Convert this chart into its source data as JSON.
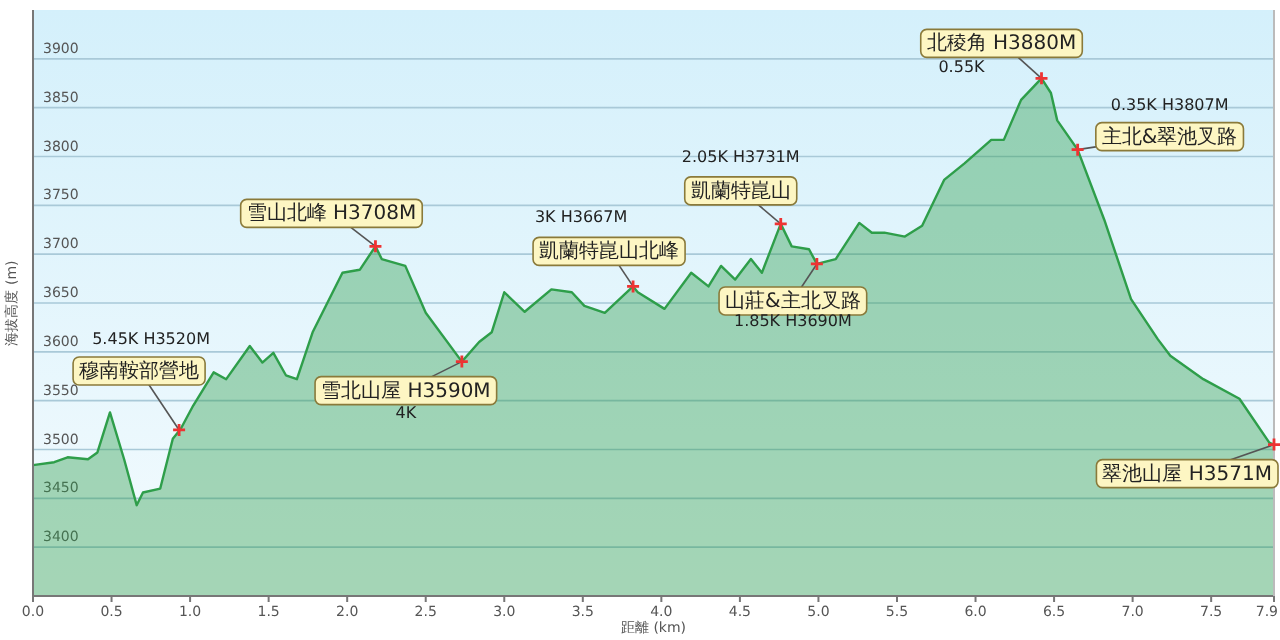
{
  "chart_data": {
    "type": "area",
    "xlabel": "距離 (km)",
    "ylabel": "海拔高度 (m)",
    "x": [
      0,
      0.135,
      0.22,
      0.35,
      0.41,
      0.49,
      0.58,
      0.66,
      0.7,
      0.81,
      0.89,
      0.94,
      1.02,
      1.15,
      1.23,
      1.38,
      1.46,
      1.53,
      1.61,
      1.68,
      1.78,
      1.97,
      2.08,
      2.18,
      2.22,
      2.37,
      2.5,
      2.73,
      2.84,
      2.92,
      3.0,
      3.13,
      3.3,
      3.43,
      3.51,
      3.64,
      3.82,
      3.85,
      4.02,
      4.19,
      4.3,
      4.38,
      4.47,
      4.57,
      4.64,
      4.76,
      4.83,
      4.94,
      4.99,
      5.11,
      5.26,
      5.34,
      5.42,
      5.55,
      5.66,
      5.8,
      5.93,
      6.1,
      6.18,
      6.29,
      6.42,
      6.48,
      6.52,
      6.65,
      6.82,
      6.99,
      7.16,
      7.24,
      7.45,
      7.68,
      7.87,
      7.9
    ],
    "series": [
      {
        "color": "#2e9e4a",
        "values": [
          3484,
          3487,
          3492,
          3490,
          3497,
          3538,
          3490,
          3443,
          3456,
          3460,
          3511,
          3521,
          3545,
          3579,
          3572,
          3606,
          3589,
          3599,
          3576,
          3572,
          3620,
          3681,
          3684,
          3708,
          3695,
          3688,
          3640,
          3590,
          3610,
          3620,
          3661,
          3641,
          3664,
          3661,
          3647,
          3640,
          3667,
          3661,
          3644,
          3681,
          3667,
          3688,
          3674,
          3695,
          3681,
          3731,
          3708,
          3705,
          3690,
          3695,
          3732,
          3722,
          3722,
          3718,
          3729,
          3776,
          3793,
          3817,
          3817,
          3858,
          3880,
          3865,
          3837,
          3807,
          3735,
          3654,
          3613,
          3596,
          3572,
          3552,
          3507,
          3505
        ]
      }
    ],
    "xlim": [
      0,
      7.9
    ],
    "ylim": [
      3350,
      3950
    ],
    "xticks": [
      {
        "value": 0,
        "label": "0.0"
      },
      0.5,
      {
        "value": 1,
        "label": "1.0"
      },
      1.5,
      {
        "value": 2,
        "label": "2.0"
      },
      2.5,
      {
        "value": 3,
        "label": "3.0"
      },
      3.5,
      {
        "value": 4,
        "label": "4.0"
      },
      4.5,
      {
        "value": 5,
        "label": "5.0"
      },
      5.5,
      {
        "value": 6,
        "label": "6.0"
      },
      6.5,
      {
        "value": 7,
        "label": "7.0"
      },
      7.5,
      7.9
    ],
    "yticks": [
      3400,
      3450,
      3500,
      3550,
      3600,
      3650,
      3700,
      3750,
      3800,
      3850,
      3900
    ],
    "grid": "y",
    "annotations": [
      {
        "text": "穆南鞍部營地",
        "x": 0.93,
        "y": 3520
      },
      "5.45K H3520M",
      {
        "text": "雪山北峰 H3708M",
        "x": 2.18,
        "y": 3708
      },
      {
        "text": "雪北山屋 H3590M",
        "x": 2.73,
        "y": 3590
      },
      "4K",
      {
        "text": "凱蘭特崑山北峰",
        "x": 3.82,
        "y": 3667
      },
      "3K H3667M",
      {
        "text": "凱蘭特崑山",
        "x": 4.76,
        "y": 3731
      },
      "2.05K H3731M",
      {
        "text": "山莊&主北叉路",
        "x": 4.99,
        "y": 3690
      },
      "1.85K H3690M",
      {
        "text": "北稜角 H3880M",
        "x": 6.42,
        "y": 3880
      },
      "0.55K",
      {
        "text": "主北&翠池叉路",
        "x": 6.65,
        "y": 3807
      },
      "0.35K H3807M",
      {
        "text": "翠池山屋 H3571M",
        "x": 7.9,
        "y": 3505
      }
    ]
  }
}
